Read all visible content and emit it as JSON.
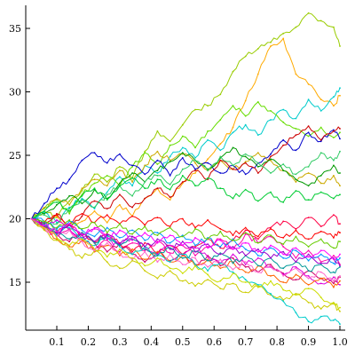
{
  "chart_data": {
    "type": "line",
    "title": "",
    "xlabel": "",
    "ylabel": "",
    "xlim": [
      0.02,
      1.0
    ],
    "ylim": [
      11.5,
      37
    ],
    "grid": false,
    "legend": "none",
    "x_ticks": [
      {
        "value": 0.1,
        "label": "0.1"
      },
      {
        "value": 0.2,
        "label": "0.2"
      },
      {
        "value": 0.3,
        "label": "0.3"
      },
      {
        "value": 0.4,
        "label": "0.4"
      },
      {
        "value": 0.5,
        "label": "0.5"
      },
      {
        "value": 0.6,
        "label": "0.6"
      },
      {
        "value": 0.7,
        "label": "0.7"
      },
      {
        "value": 0.8,
        "label": "0.8"
      },
      {
        "value": 0.9,
        "label": "0.9"
      },
      {
        "value": 1.0,
        "label": "1.0"
      }
    ],
    "y_ticks": [
      {
        "value": 15,
        "label": "15"
      },
      {
        "value": 20,
        "label": "20"
      },
      {
        "value": 25,
        "label": "25"
      },
      {
        "value": 30,
        "label": "30"
      },
      {
        "value": 35,
        "label": "35"
      }
    ],
    "x": [
      0.02,
      0.06,
      0.1,
      0.14,
      0.18,
      0.22,
      0.26,
      0.3,
      0.34,
      0.38,
      0.42,
      0.46,
      0.5,
      0.54,
      0.58,
      0.62,
      0.66,
      0.7,
      0.74,
      0.78,
      0.82,
      0.86,
      0.9,
      0.94,
      0.98,
      1.0
    ],
    "series": [
      {
        "color": "#99cc00",
        "values": [
          20,
          20.6,
          20.1,
          21.4,
          22.2,
          23.5,
          22.9,
          24.1,
          23.2,
          25.3,
          26.9,
          26.1,
          27.4,
          28.6,
          28.9,
          29.8,
          31.6,
          32.8,
          33.4,
          33.9,
          34.6,
          35.1,
          36.2,
          35.6,
          35.1,
          33.6
        ]
      },
      {
        "color": "#ffaa00",
        "values": [
          20,
          19.4,
          20.2,
          19.1,
          19.8,
          20.6,
          19.7,
          21.1,
          20.2,
          21.6,
          22.4,
          21.5,
          22.8,
          23.6,
          24.7,
          25.9,
          27.2,
          29.3,
          31.4,
          33.6,
          34.2,
          31.4,
          30.6,
          29.4,
          28.9,
          29.7
        ]
      },
      {
        "color": "#00cccc",
        "values": [
          20,
          20.5,
          19.7,
          20.9,
          21.6,
          20.8,
          22.1,
          23.3,
          22.6,
          24.2,
          23.6,
          24.9,
          25.6,
          24.8,
          26.2,
          25.4,
          26.8,
          27.4,
          26.6,
          27.8,
          28.6,
          27.9,
          29.4,
          28.5,
          29.6,
          30.3
        ]
      },
      {
        "color": "#66dd00",
        "values": [
          20,
          20.8,
          21.5,
          20.4,
          21.9,
          22.8,
          23.4,
          22.6,
          24.1,
          25.2,
          24.3,
          25.8,
          26.5,
          25.6,
          26.9,
          27.8,
          28.9,
          28.1,
          29.2,
          28.5,
          27.6,
          27.1,
          26.5,
          27.2,
          26.4,
          26.8
        ]
      },
      {
        "color": "#ccaa00",
        "values": [
          20,
          20.9,
          21.6,
          21.1,
          22.4,
          23.1,
          22.6,
          23.8,
          22.9,
          24.2,
          25.3,
          24.6,
          25.1,
          24.4,
          23.8,
          24.6,
          23.9,
          24.5,
          25.2,
          24.6,
          23.8,
          22.9,
          23.6,
          22.8,
          23.4,
          22.6
        ]
      },
      {
        "color": "#0000cc",
        "values": [
          20,
          21.2,
          22.4,
          23.1,
          24.6,
          25.2,
          24.4,
          25.1,
          24.2,
          23.5,
          24.6,
          23.4,
          24.8,
          23.9,
          24.4,
          23.6,
          24.2,
          23.5,
          24.4,
          25.1,
          26.2,
          25.4,
          26.8,
          26.1,
          27.0,
          26.3
        ]
      },
      {
        "color": "#cc0000",
        "values": [
          20,
          19.6,
          20.4,
          19.5,
          20.2,
          21.4,
          20.8,
          21.9,
          20.9,
          21.6,
          22.4,
          21.7,
          22.9,
          23.8,
          23.1,
          24.6,
          23.9,
          24.4,
          23.6,
          24.9,
          25.8,
          26.6,
          27.3,
          26.2,
          26.9,
          27.1
        ]
      },
      {
        "color": "#009900",
        "values": [
          20,
          20.4,
          21.1,
          21.8,
          21.2,
          22.3,
          21.6,
          22.8,
          23.6,
          22.9,
          23.8,
          24.5,
          25.2,
          24.6,
          23.9,
          24.8,
          25.6,
          24.9,
          24.1,
          24.7,
          23.8,
          23.1,
          22.6,
          23.4,
          24.2,
          23.6
        ]
      },
      {
        "color": "#33cc66",
        "values": [
          20,
          20.3,
          19.6,
          20.8,
          21.5,
          20.9,
          21.9,
          22.6,
          21.8,
          22.9,
          23.4,
          22.7,
          23.9,
          24.6,
          23.8,
          24.9,
          24.2,
          25.1,
          24.4,
          23.6,
          24.3,
          23.5,
          24.1,
          25.2,
          24.6,
          25.3
        ]
      },
      {
        "color": "#00cc33",
        "values": [
          20,
          20.6,
          21.3,
          20.6,
          21.8,
          22.4,
          21.5,
          22.6,
          23.2,
          22.4,
          23.1,
          22.3,
          23.4,
          22.6,
          23.2,
          22.4,
          21.6,
          22.3,
          21.4,
          22.1,
          21.3,
          22.2,
          21.5,
          22.1,
          21.6,
          21.9
        ]
      },
      {
        "color": "#ff00aa",
        "values": [
          20,
          19.3,
          18.6,
          19.2,
          18.4,
          17.6,
          18.3,
          17.4,
          18.1,
          17.5,
          18.2,
          17.3,
          17.9,
          17.1,
          17.8,
          18.4,
          17.6,
          18.8,
          18.1,
          18.6,
          17.8,
          16.9,
          17.5,
          16.6,
          17.1,
          16.4
        ]
      },
      {
        "color": "#cc0066",
        "values": [
          20,
          19.5,
          18.8,
          18.2,
          18.9,
          18.1,
          17.4,
          18.1,
          17.2,
          16.6,
          17.4,
          16.7,
          17.2,
          16.4,
          17.1,
          16.3,
          16.9,
          16.2,
          15.8,
          16.4,
          15.7,
          15.2,
          15.9,
          15.3,
          14.9,
          15.4
        ]
      },
      {
        "color": "#ff0044",
        "values": [
          20,
          19.6,
          18.9,
          19.5,
          18.7,
          18.1,
          18.8,
          18.0,
          17.4,
          18.1,
          17.3,
          17.9,
          17.2,
          17.8,
          18.4,
          17.7,
          18.3,
          19.1,
          18.4,
          19.3,
          19.8,
          19.2,
          20.1,
          19.4,
          20.3,
          19.6
        ]
      },
      {
        "color": "#dd00dd",
        "values": [
          20,
          19.4,
          19.9,
          19.1,
          18.5,
          19.2,
          18.4,
          17.9,
          18.6,
          17.8,
          17.2,
          17.9,
          17.1,
          17.7,
          17.0,
          16.5,
          17.2,
          16.4,
          16.9,
          16.2,
          15.6,
          16.2,
          15.5,
          14.9,
          15.4,
          14.8
        ]
      },
      {
        "color": "#ff6600",
        "values": [
          20,
          19.2,
          18.4,
          17.8,
          18.3,
          17.4,
          17.9,
          17.1,
          17.6,
          16.8,
          17.4,
          16.6,
          17.1,
          16.3,
          16.8,
          16.1,
          16.6,
          15.8,
          16.3,
          15.5,
          15.0,
          15.6,
          14.8,
          15.3,
          14.6,
          15.1
        ]
      },
      {
        "color": "#cccc00",
        "values": [
          20,
          19.1,
          18.3,
          17.6,
          16.9,
          17.5,
          16.6,
          16.1,
          16.7,
          15.9,
          15.3,
          15.9,
          15.1,
          14.7,
          15.2,
          14.5,
          14.9,
          14.2,
          14.7,
          14.0,
          13.6,
          14.1,
          13.4,
          12.9,
          13.3,
          12.7
        ]
      },
      {
        "color": "#00cccc",
        "values": [
          20,
          19.5,
          18.7,
          19.3,
          18.5,
          17.9,
          18.6,
          17.8,
          17.2,
          17.8,
          17.1,
          16.6,
          17.2,
          16.4,
          15.9,
          16.5,
          15.8,
          15.2,
          14.8,
          14.1,
          13.5,
          12.6,
          11.9,
          12.3,
          12.0,
          11.7
        ]
      },
      {
        "color": "#ff0000",
        "values": [
          20,
          19.7,
          20.3,
          19.6,
          20.4,
          19.7,
          20.3,
          19.6,
          20.2,
          19.5,
          20.1,
          19.4,
          20.0,
          19.3,
          19.9,
          19.2,
          18.7,
          19.3,
          18.6,
          19.2,
          18.5,
          19.1,
          18.4,
          19.0,
          18.5,
          18.9
        ]
      },
      {
        "color": "#ff66cc",
        "values": [
          20,
          19.3,
          18.6,
          19.1,
          18.2,
          17.5,
          18.1,
          17.3,
          16.8,
          17.4,
          16.6,
          17.2,
          16.4,
          16.9,
          16.2,
          16.8,
          16.0,
          16.6,
          15.8,
          16.3,
          15.5,
          16.1,
          15.3,
          15.8,
          15.1,
          15.5
        ]
      },
      {
        "color": "#0099ff",
        "values": [
          20,
          19.8,
          19.2,
          19.8,
          19.1,
          18.6,
          19.3,
          18.5,
          19.1,
          18.3,
          18.9,
          18.1,
          18.7,
          17.9,
          18.5,
          17.8,
          18.4,
          17.6,
          17.1,
          17.7,
          16.9,
          17.5,
          16.7,
          17.2,
          16.5,
          16.9
        ]
      },
      {
        "color": "#009999",
        "values": [
          20,
          19.6,
          19.1,
          18.4,
          18.9,
          18.1,
          18.7,
          17.9,
          18.4,
          17.6,
          17.1,
          17.7,
          16.9,
          17.4,
          16.7,
          17.3,
          16.5,
          17.1,
          16.3,
          16.9,
          16.1,
          16.6,
          15.9,
          16.4,
          15.8,
          16.2
        ]
      },
      {
        "color": "#9900cc",
        "values": [
          20,
          19.4,
          18.9,
          19.5,
          18.7,
          18.2,
          18.8,
          18.0,
          18.6,
          17.8,
          18.4,
          17.6,
          18.2,
          17.4,
          18.0,
          17.2,
          17.8,
          17.1,
          17.6,
          16.9,
          17.4,
          16.6,
          17.2,
          16.5,
          16.9,
          16.3
        ]
      },
      {
        "color": "#66cc00",
        "values": [
          20,
          19.8,
          19.3,
          19.9,
          19.2,
          19.7,
          18.9,
          19.6,
          18.8,
          19.4,
          18.7,
          19.3,
          18.6,
          19.2,
          18.4,
          19.0,
          18.3,
          18.9,
          18.1,
          18.7,
          18.0,
          18.6,
          17.8,
          18.4,
          17.7,
          18.2
        ]
      },
      {
        "color": "#ccdd00",
        "values": [
          20,
          19.3,
          18.5,
          17.9,
          18.4,
          17.6,
          17.0,
          17.6,
          16.9,
          16.3,
          16.9,
          16.1,
          15.7,
          16.3,
          15.6,
          15.1,
          15.7,
          15.0,
          14.6,
          15.1,
          14.4,
          14.0,
          14.5,
          13.8,
          13.4,
          13.0
        ]
      },
      {
        "color": "#ff00ff",
        "values": [
          20,
          19.5,
          19.0,
          19.6,
          18.8,
          19.3,
          18.5,
          19.1,
          18.3,
          18.9,
          18.1,
          18.7,
          17.9,
          18.5,
          17.7,
          18.3,
          17.6,
          18.1,
          17.4,
          17.9,
          17.2,
          17.7,
          17.0,
          17.5,
          16.8,
          17.2
        ]
      }
    ]
  }
}
